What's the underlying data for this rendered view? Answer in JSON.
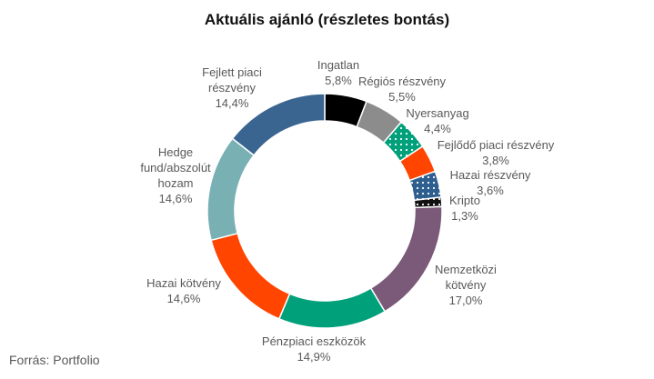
{
  "chart_data": {
    "type": "pie",
    "variant": "donut",
    "title": "Aktuális ajánló (részletes bontás)",
    "source": "Forrás: Portfolio",
    "slices": [
      {
        "name": "Ingatlan",
        "value": 5.8,
        "label": "5,8%",
        "color": "#000000",
        "pattern": "solid"
      },
      {
        "name": "Régiós részvény",
        "value": 5.5,
        "label": "5,5%",
        "color": "#8c8c8c",
        "pattern": "solid"
      },
      {
        "name": "Nyersanyag",
        "value": 4.4,
        "label": "4,4%",
        "color": "#00a07a",
        "pattern": "dots"
      },
      {
        "name": "Fejlődő piaci részvény",
        "value": 3.8,
        "label": "3,8%",
        "color": "#ff4500",
        "pattern": "solid"
      },
      {
        "name": "Hazai részvény",
        "value": 3.6,
        "label": "3,6%",
        "color": "#2f5f8f",
        "pattern": "dots"
      },
      {
        "name": "Kripto",
        "value": 1.3,
        "label": "1,3%",
        "color": "#111111",
        "pattern": "dots"
      },
      {
        "name": "Nemzetközi kötvény",
        "value": 17.0,
        "label": "17,0%",
        "color": "#7a5a78",
        "pattern": "solid"
      },
      {
        "name": "Pénzpiaci eszközök",
        "value": 14.9,
        "label": "14,9%",
        "color": "#00a07a",
        "pattern": "solid"
      },
      {
        "name": "Hazai kötvény",
        "value": 14.6,
        "label": "14,6%",
        "color": "#ff4500",
        "pattern": "solid"
      },
      {
        "name": "Hedge fund/abszolút hozam",
        "value": 14.6,
        "label": "14,6%",
        "color": "#79b0b4",
        "pattern": "solid"
      },
      {
        "name": "Fejlett piaci részvény",
        "value": 14.4,
        "label": "14,4%",
        "color": "#3a6591",
        "pattern": "solid"
      }
    ]
  }
}
